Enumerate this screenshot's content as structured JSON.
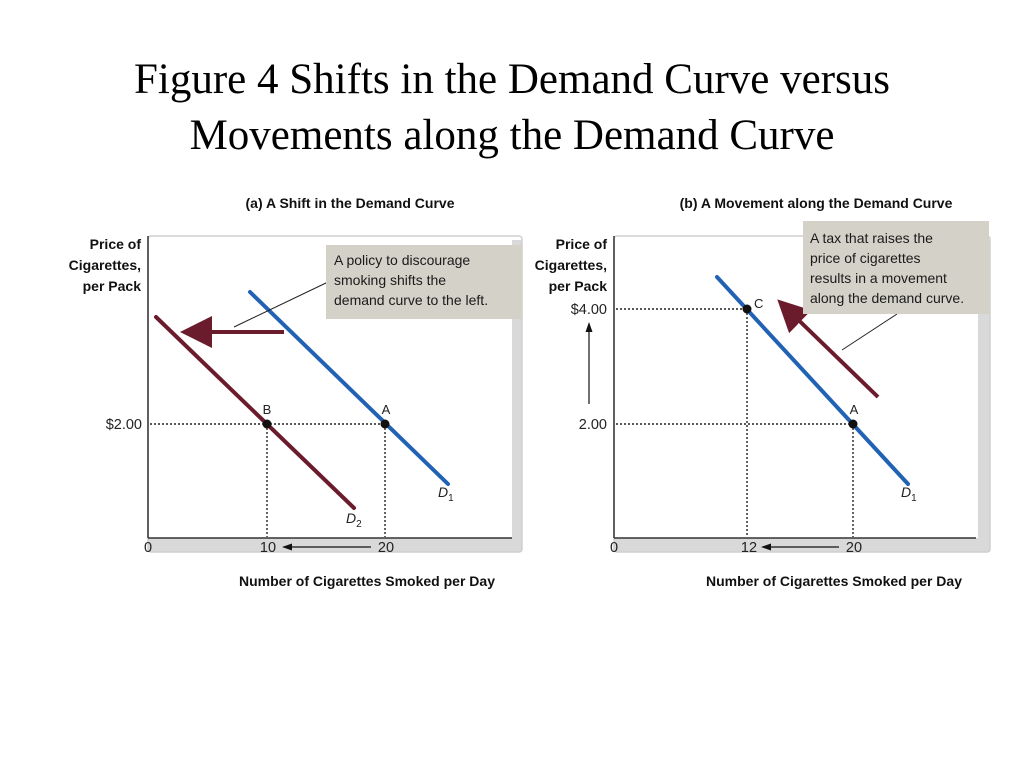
{
  "slide": {
    "title_line1": "Figure 4 Shifts in the Demand Curve versus",
    "title_line2": "Movements along the Demand Curve"
  },
  "colors": {
    "d1": "#2262b5",
    "d2": "#6b1c2c",
    "note_bg": "#d4d1c8",
    "frame_shadow": "#d9d9d9"
  },
  "chart_data": [
    {
      "type": "line",
      "title": "(a) A Shift in the Demand Curve",
      "xlabel": "Number of Cigarettes Smoked per Day",
      "ylabel_lines": [
        "Price of",
        "Cigarettes,",
        "per Pack"
      ],
      "x_ticks": [
        "0",
        "10",
        "20"
      ],
      "y_ticks": [
        "$2.00"
      ],
      "grid": false,
      "series": [
        {
          "name": "D1",
          "label_main": "D",
          "label_sub": "1",
          "color": "#2262b5",
          "x": [
            10,
            25
          ],
          "y": [
            3.5,
            0.6
          ]
        },
        {
          "name": "D2",
          "label_main": "D",
          "label_sub": "2",
          "color": "#6b1c2c",
          "x": [
            0.6,
            17.5
          ],
          "y": [
            3.55,
            0.35
          ]
        }
      ],
      "points": [
        {
          "label": "A",
          "x": 20,
          "y": 2.0
        },
        {
          "label": "B",
          "x": 10,
          "y": 2.0
        }
      ],
      "arrow_note": "10 ← 20",
      "annotation": "A policy to discourage smoking shifts the demand curve to the left.",
      "annotation_lines": [
        "A policy to discourage",
        "smoking shifts the",
        "demand curve to the left."
      ]
    },
    {
      "type": "line",
      "title": "(b) A Movement along the Demand Curve",
      "xlabel": "Number of Cigarettes Smoked per Day",
      "ylabel_lines": [
        "Price of",
        "Cigarettes,",
        "per Pack"
      ],
      "x_ticks": [
        "0",
        "12",
        "20"
      ],
      "y_ticks": [
        "2.00",
        "$4.00"
      ],
      "grid": false,
      "series": [
        {
          "name": "D1",
          "label_main": "D",
          "label_sub": "1",
          "color": "#2262b5",
          "x": [
            8,
            25
          ],
          "y": [
            4.3,
            0.5
          ]
        }
      ],
      "points": [
        {
          "label": "A",
          "x": 20,
          "y": 2.0
        },
        {
          "label": "C",
          "x": 12,
          "y": 4.0
        }
      ],
      "arrow_note": "12 ← 20",
      "annotation": "A tax that raises the price of cigarettes results in a movement along the demand curve.",
      "annotation_lines": [
        "A tax that raises the",
        "price of cigarettes",
        "results in a movement",
        "along the demand curve."
      ]
    }
  ]
}
